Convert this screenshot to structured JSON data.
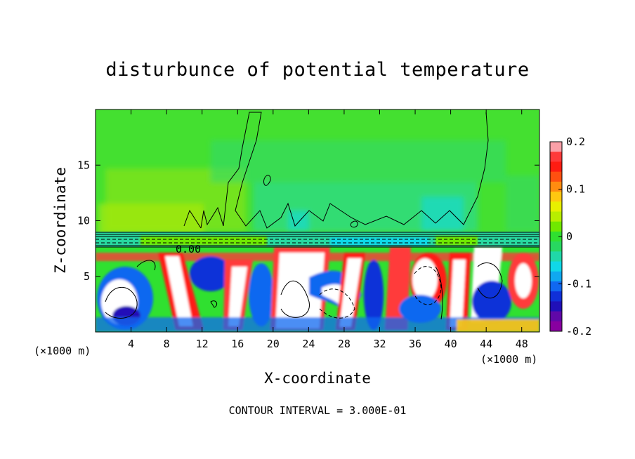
{
  "title": "disturbunce of potential temperature",
  "xlabel": "X-coordinate",
  "ylabel": "Z-coordinate",
  "x_unit_left": "(×1000 m)",
  "x_unit_right": "(×1000 m)",
  "contour_note": "CONTOUR INTERVAL = 3.000E-01",
  "chart_data": {
    "type": "heatmap",
    "title": "disturbunce of potential temperature",
    "xlabel": "X-coordinate",
    "ylabel": "Z-coordinate",
    "xlim": [
      0,
      50
    ],
    "ylim": [
      0,
      20
    ],
    "x_ticks": [
      4,
      8,
      12,
      16,
      20,
      24,
      28,
      32,
      36,
      40,
      44,
      48
    ],
    "y_ticks": [
      5,
      10,
      15
    ],
    "colorbar": {
      "range": [
        -0.2,
        0.2
      ],
      "ticks": [
        "0.2",
        "0.1",
        "0",
        "-0.1",
        "-0.2"
      ],
      "tick_values": [
        0.2,
        0.1,
        0,
        -0.1,
        -0.2
      ],
      "colors": [
        "#fba0a8",
        "#ff3a3a",
        "#ff1c12",
        "#ff5010",
        "#ff8c10",
        "#ffc810",
        "#e8f000",
        "#b8ee00",
        "#70e800",
        "#30e030",
        "#28d860",
        "#20d8a8",
        "#10d8e8",
        "#10a8f0",
        "#1068f0",
        "#1030d8",
        "#2010b8",
        "#6008a8",
        "#8800a0"
      ]
    },
    "annotations": [
      "0.00"
    ]
  }
}
